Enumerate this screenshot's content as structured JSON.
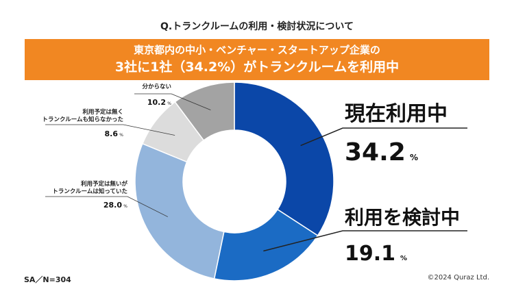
{
  "header": {
    "question": "Q.トランクルームの利用・検討状況について",
    "banner_line1": "東京都内の中小・ベンチャー・スタートアップ企業の",
    "banner_line2": "3社に1社（34.2%）がトランクルームを利用中"
  },
  "footer": {
    "sample_note": "SA／N=304",
    "copyright": "©2024 Quraz Ltd."
  },
  "colors": {
    "banner": "#f18722",
    "slices": [
      "#0b47a8",
      "#1b6bc4",
      "#93b5dc",
      "#dcdcdc",
      "#a3a3a3"
    ]
  },
  "chart_data": {
    "type": "pie",
    "title": "Q.トランクルームの利用・検討状況について",
    "sample": "SA／N=304",
    "unit": "%",
    "slices": [
      {
        "label": "現在利用中",
        "label_lines": [
          "現在利用中"
        ],
        "value": 34.2,
        "value_text": "34.2"
      },
      {
        "label": "利用を検討中",
        "label_lines": [
          "利用を検討中"
        ],
        "value": 19.1,
        "value_text": "19.1"
      },
      {
        "label": "利用予定は無いがトランクルームは知っていた",
        "label_lines": [
          "利用予定は無いが",
          "トランクルームは知っていた"
        ],
        "value": 28.0,
        "value_text": "28.0"
      },
      {
        "label": "利用予定は無くトランクルームも知らなかった",
        "label_lines": [
          "利用予定は無く",
          "トランクルームも知らなかった"
        ],
        "value": 8.6,
        "value_text": "8.6"
      },
      {
        "label": "分からない",
        "label_lines": [
          "分からない"
        ],
        "value": 10.2,
        "value_text": "10.2"
      }
    ]
  }
}
